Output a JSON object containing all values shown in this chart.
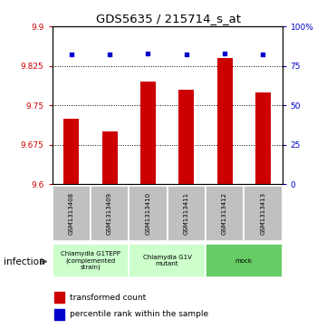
{
  "title": "GDS5635 / 215714_s_at",
  "samples": [
    "GSM1313408",
    "GSM1313409",
    "GSM1313410",
    "GSM1313411",
    "GSM1313412",
    "GSM1313413"
  ],
  "bar_values": [
    9.725,
    9.7,
    9.795,
    9.78,
    9.84,
    9.775
  ],
  "percentile_values": [
    82,
    82,
    83,
    82,
    83,
    82
  ],
  "bar_color": "#cc0000",
  "percentile_color": "#0000cc",
  "ymin": 9.6,
  "ymax": 9.9,
  "y_ticks": [
    9.6,
    9.675,
    9.75,
    9.825,
    9.9
  ],
  "y_tick_labels": [
    "9.6",
    "9.675",
    "9.75",
    "9.825",
    "9.9"
  ],
  "right_yticks": [
    0,
    25,
    50,
    75,
    100
  ],
  "right_ytick_labels": [
    "0",
    "25",
    "50",
    "75",
    "100%"
  ],
  "groups": [
    {
      "label": "Chlamydia G1TEPP\n(complemented\nstrain)",
      "start": 0,
      "end": 1,
      "color": "#ccffcc"
    },
    {
      "label": "Chlamydia G1V\nmutant",
      "start": 2,
      "end": 3,
      "color": "#ccffcc"
    },
    {
      "label": "mock",
      "start": 4,
      "end": 5,
      "color": "#66cc66"
    }
  ],
  "infection_label": "infection",
  "legend_bar_label": "transformed count",
  "legend_dot_label": "percentile rank within the sample",
  "background_color": "#ffffff",
  "tick_label_color_left": "#cc0000",
  "tick_label_color_right": "#0000cc",
  "sample_box_color": "#c0c0c0",
  "bar_width": 0.4
}
